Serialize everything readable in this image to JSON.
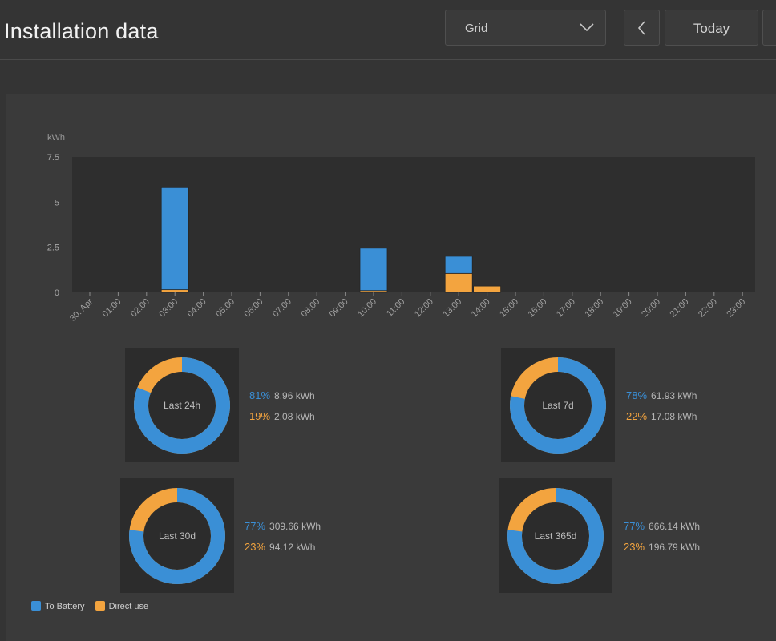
{
  "header": {
    "title": "Installation data",
    "filter_value": "Grid",
    "today_label": "Today"
  },
  "colors": {
    "to_battery": "#3a8fd6",
    "direct_use": "#f3a43f",
    "plot_bg": "#2e2e2e"
  },
  "chart_data": {
    "type": "bar",
    "stacked": true,
    "ylabel": "kWh",
    "ylim": [
      0,
      7.5
    ],
    "yticks": [
      "7.5",
      "5",
      "2.5",
      "0"
    ],
    "ytick_values": [
      7.5,
      5,
      2.5,
      0
    ],
    "categories": [
      "30. Apr",
      "01:00",
      "02:00",
      "03:00",
      "04:00",
      "05:00",
      "06:00",
      "07:00",
      "08:00",
      "09:00",
      "10:00",
      "11:00",
      "12:00",
      "13:00",
      "14:00",
      "15:00",
      "16:00",
      "17:00",
      "18:00",
      "19:00",
      "20:00",
      "21:00",
      "22:00",
      "23:00"
    ],
    "series": [
      {
        "name": "Direct use",
        "color": "#f3a43f",
        "values": [
          0,
          0,
          0,
          0.15,
          0,
          0,
          0,
          0,
          0,
          0,
          0.1,
          0,
          0,
          1.05,
          0.35,
          0,
          0,
          0,
          0,
          0,
          0,
          0,
          0,
          0
        ]
      },
      {
        "name": "To Battery",
        "color": "#3a8fd6",
        "values": [
          0,
          0,
          0,
          5.65,
          0,
          0,
          0,
          0,
          0,
          0,
          2.35,
          0,
          0,
          0.95,
          0,
          0,
          0,
          0,
          0,
          0,
          0,
          0,
          0,
          0
        ]
      }
    ],
    "legend_position": "bottom-left"
  },
  "donuts": [
    {
      "label": "Last 24h",
      "battery_pct": "81%",
      "battery_kwh": "8.96 kWh",
      "direct_pct": "19%",
      "direct_kwh": "2.08 kWh",
      "battery_fraction": 0.81
    },
    {
      "label": "Last 7d",
      "battery_pct": "78%",
      "battery_kwh": "61.93 kWh",
      "direct_pct": "22%",
      "direct_kwh": "17.08 kWh",
      "battery_fraction": 0.78
    },
    {
      "label": "Last 30d",
      "battery_pct": "77%",
      "battery_kwh": "309.66 kWh",
      "direct_pct": "23%",
      "direct_kwh": "94.12 kWh",
      "battery_fraction": 0.77
    },
    {
      "label": "Last 365d",
      "battery_pct": "77%",
      "battery_kwh": "666.14 kWh",
      "direct_pct": "23%",
      "direct_kwh": "196.79 kWh",
      "battery_fraction": 0.77
    }
  ],
  "legend": {
    "to_battery": "To Battery",
    "direct_use": "Direct use"
  }
}
